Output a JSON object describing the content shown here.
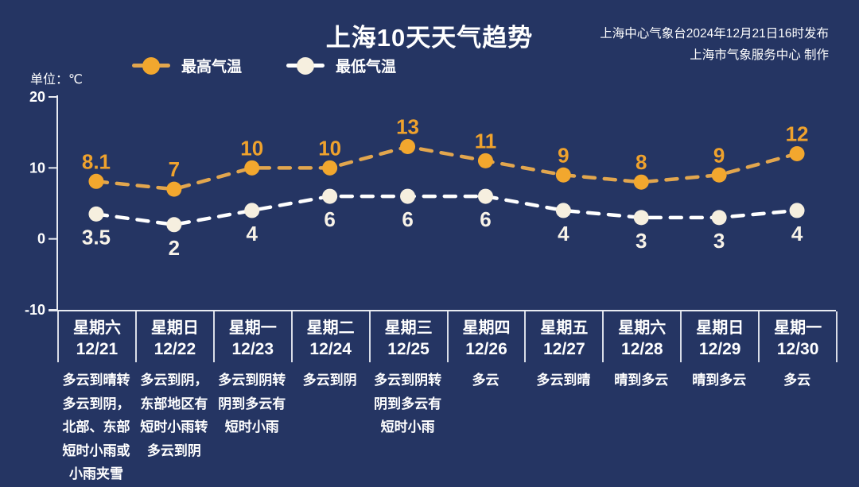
{
  "header": {
    "title": "上海10天天气趋势",
    "publisher_line1": "上海中心气象台2024年12月21日16时发布",
    "publisher_line2": "上海市气象服务中心 制作"
  },
  "unit_label": "单位：℃",
  "legend": {
    "high_label": "最高气温",
    "low_label": "最低气温",
    "high_color": "#F2A72E",
    "high_line_color": "#E2A64E",
    "low_color": "#F6EFDF",
    "low_line_color": "#FFFFFF"
  },
  "chart_data": {
    "type": "line",
    "title": "上海10天天气趋势",
    "ylabel": "单位：℃",
    "ylim": [
      -10,
      20
    ],
    "yticks": [
      20,
      10,
      0,
      -10
    ],
    "grid": false,
    "legend_position": "top",
    "background": "#253563",
    "axis_color": "#E8EBF2",
    "categories": [
      {
        "day": "星期六",
        "date": "12/21"
      },
      {
        "day": "星期日",
        "date": "12/22"
      },
      {
        "day": "星期一",
        "date": "12/23"
      },
      {
        "day": "星期二",
        "date": "12/24"
      },
      {
        "day": "星期三",
        "date": "12/25"
      },
      {
        "day": "星期四",
        "date": "12/26"
      },
      {
        "day": "星期五",
        "date": "12/27"
      },
      {
        "day": "星期六",
        "date": "12/28"
      },
      {
        "day": "星期日",
        "date": "12/29"
      },
      {
        "day": "星期一",
        "date": "12/30"
      }
    ],
    "series": [
      {
        "name": "最高气温",
        "marker_color": "#F2A72E",
        "line_color": "#E2A64E",
        "label_color": "#EFA22D",
        "label_position": "above",
        "values": [
          8.1,
          7,
          10,
          10,
          13,
          11,
          9,
          8,
          9,
          12
        ]
      },
      {
        "name": "最低气温",
        "marker_color": "#F6EFDF",
        "line_color": "#FFFFFF",
        "label_color": "#F8F3E8",
        "label_position": "below",
        "values": [
          3.5,
          2,
          4,
          6,
          6,
          6,
          4,
          3,
          3,
          4
        ]
      }
    ],
    "weather": [
      [
        "多云到晴转",
        "多云到阴，",
        "北部、东部",
        "短时小雨或",
        "小雨夹雪"
      ],
      [
        "多云到阴，",
        "东部地区有",
        "短时小雨转",
        "多云到阴"
      ],
      [
        "多云到阴转",
        "阴到多云有",
        "短时小雨"
      ],
      [
        "多云到阴"
      ],
      [
        "多云到阴转",
        "阴到多云有",
        "短时小雨"
      ],
      [
        "多云"
      ],
      [
        "多云到晴"
      ],
      [
        "晴到多云"
      ],
      [
        "晴到多云"
      ],
      [
        "多云"
      ]
    ]
  }
}
